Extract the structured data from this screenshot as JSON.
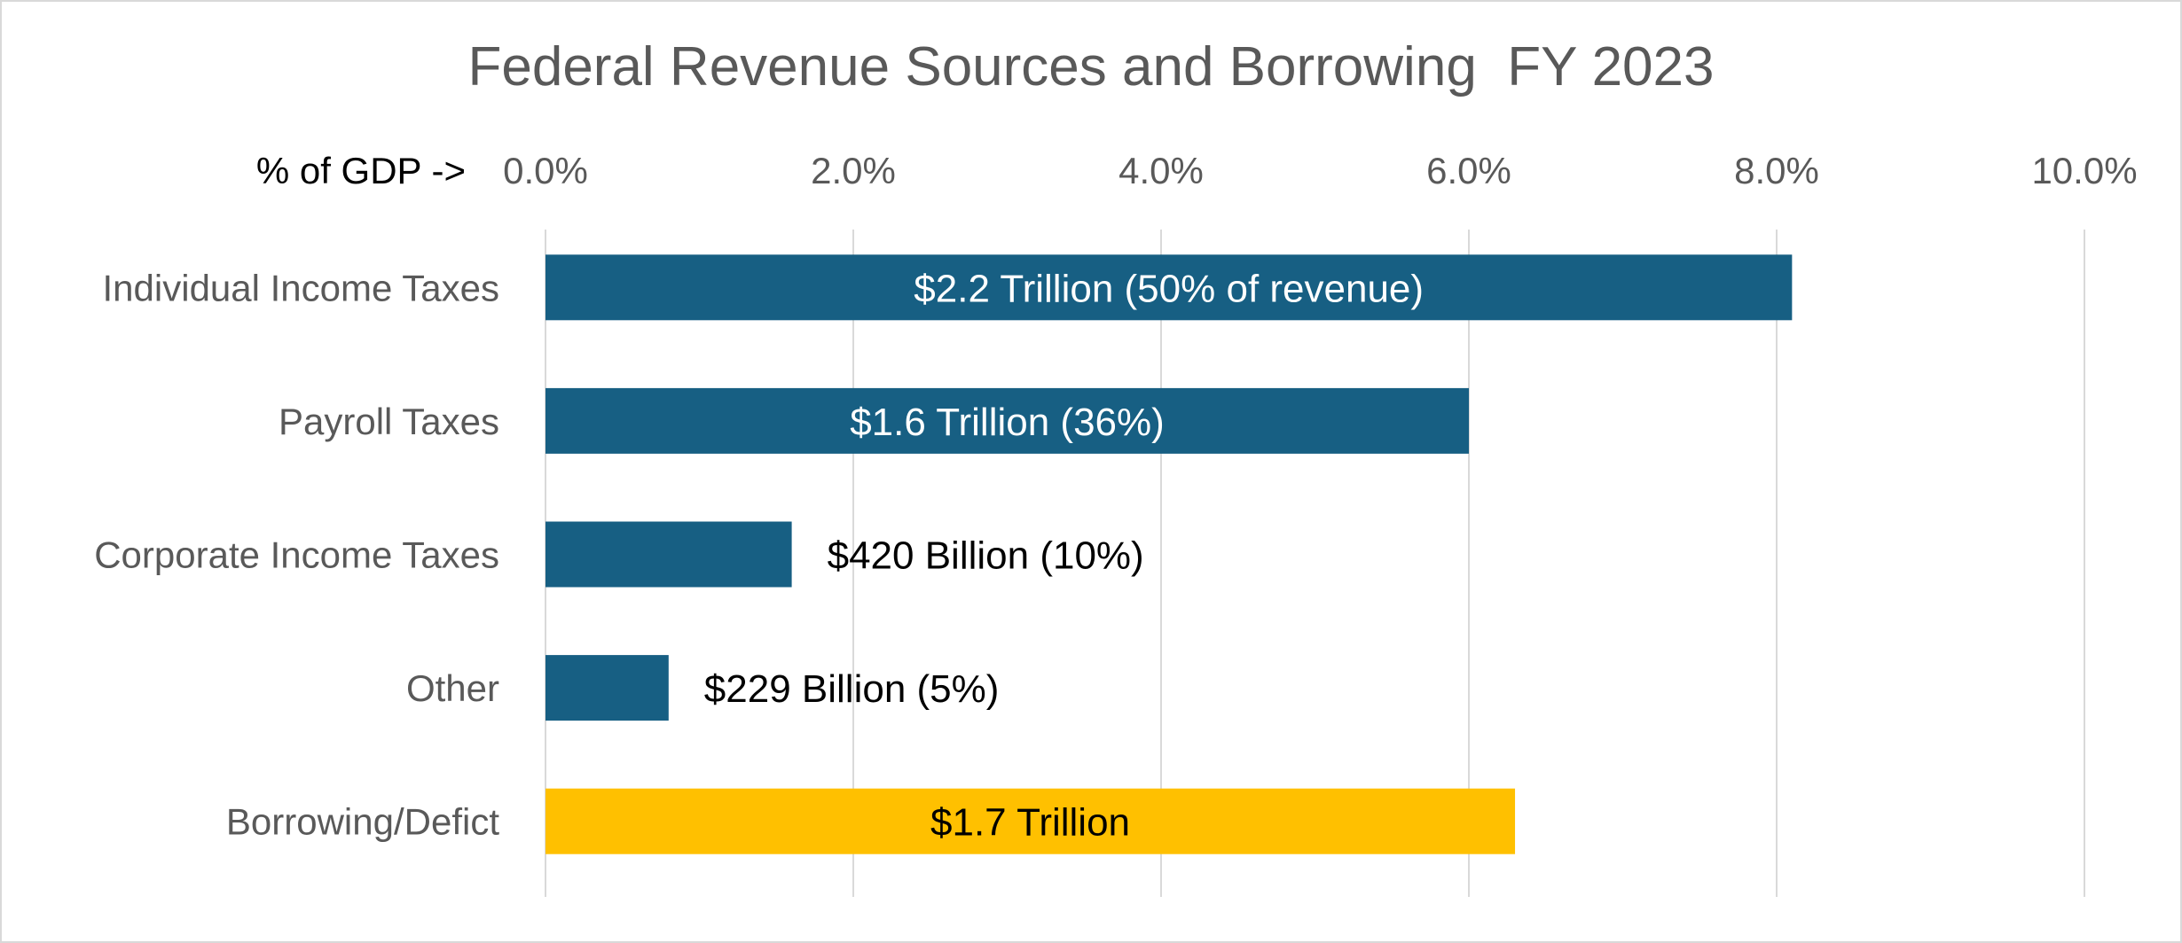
{
  "chart_data": {
    "type": "bar",
    "orientation": "horizontal",
    "title": "Federal Revenue Sources and Borrowing  FY 2023",
    "axis_prefix_label": "% of GDP ->",
    "xlim": [
      0,
      10
    ],
    "x_ticks": [
      "0.0%",
      "2.0%",
      "4.0%",
      "6.0%",
      "8.0%",
      "10.0%"
    ],
    "grid": true,
    "categories": [
      "Individual Income Taxes",
      "Payroll Taxes",
      "Corporate Income Taxes",
      "Other",
      "Borrowing/Defict"
    ],
    "values": [
      8.1,
      6.0,
      1.6,
      0.8,
      6.3
    ],
    "data_labels": [
      "$2.2 Trillion (50% of revenue)",
      "$1.6 Trillion (36%)",
      "$420 Billion (10%)",
      "$229 Billion (5%)",
      "$1.7 Trillion"
    ],
    "label_positions": [
      "inside",
      "inside",
      "outside",
      "outside",
      "inside"
    ],
    "colors": [
      "#175f83",
      "#175f83",
      "#175f83",
      "#175f83",
      "#ffc000"
    ],
    "label_colors": [
      "#ffffff",
      "#ffffff",
      "#000000",
      "#000000",
      "#000000"
    ]
  }
}
